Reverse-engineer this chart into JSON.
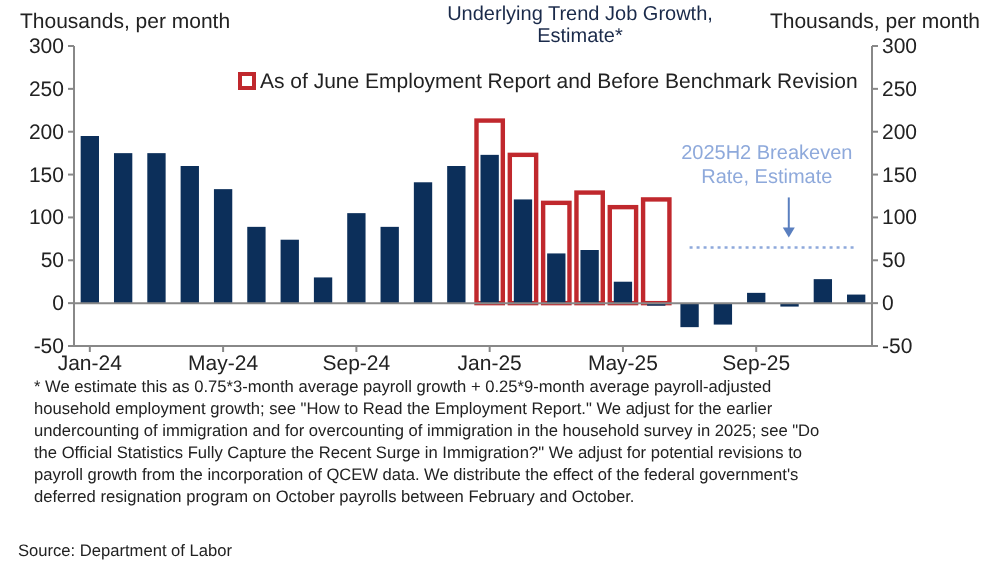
{
  "chart_data": {
    "type": "bar",
    "title": "Underlying Trend Job Growth, Estimate*",
    "ylabel": "Thousands, per month",
    "y2label": "Thousands, per month",
    "categories": [
      "Jan-24",
      null,
      null,
      null,
      "May-24",
      null,
      null,
      null,
      "Sep-24",
      null,
      null,
      null,
      "Jan-25",
      null,
      null,
      null,
      "May-25",
      null,
      null,
      null,
      "Sep-25",
      null,
      null,
      null
    ],
    "series": [
      {
        "name": "As of June Employment Report and Before Benchmark Revision",
        "color": "#c0282d",
        "values": [
          null,
          null,
          null,
          null,
          null,
          null,
          null,
          null,
          null,
          null,
          null,
          null,
          213,
          173,
          117,
          129,
          112,
          121,
          null,
          null,
          null,
          null,
          null,
          null
        ]
      },
      {
        "color": "#0c2f5a",
        "values": [
          195,
          175,
          175,
          160,
          133,
          89,
          74,
          30,
          105,
          89,
          141,
          160,
          173,
          121,
          58,
          62,
          25,
          -3,
          -28,
          -25,
          12,
          -4,
          28,
          10
        ]
      }
    ],
    "ylim": [
      -50,
      300
    ],
    "yticks": [
      -50,
      0,
      50,
      100,
      150,
      200,
      250,
      300
    ],
    "y2lim": [
      -50,
      300
    ],
    "y2ticks": [
      -50,
      0,
      50,
      100,
      150,
      200,
      250,
      300
    ],
    "ref_lines": [
      {
        "axis": "y",
        "value": 65,
        "label": "2025H2 Breakeven Rate, Estimate",
        "color": "#8ea9db",
        "line_style": "dotted"
      }
    ],
    "legend": "top",
    "annotations": [
      "* We estimate this as 0.75*3-month average payroll growth + 0.25*9-month average payroll-adjusted",
      "household employment growth; see \"How to Read the Employment Report.\" We adjust for the earlier",
      "undercounting of immigration and for overcounting of immigration in the household survey in 2025; see \"Do",
      "the Official Statistics Fully Capture the Recent Surge in Immigration?\" We adjust for potential revisions to",
      "payroll growth from the incorporation of QCEW data. We distribute the effect of the federal government's",
      "deferred resignation program on October payrolls between February and October.",
      "Source: Department of Labor"
    ]
  }
}
